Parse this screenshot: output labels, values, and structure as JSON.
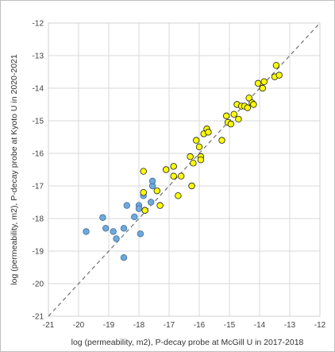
{
  "chart_data": {
    "type": "scatter",
    "title": "",
    "xlabel": "log (permeability, m2), P-decay probe at McGill U in 2017-2018",
    "ylabel": "log (permeability, m2), P-decay probe at Kyoto U in 2020-2021",
    "xlim": [
      -21,
      -12
    ],
    "ylim": [
      -21,
      -12
    ],
    "x_ticks": [
      "-21",
      "-20",
      "-19",
      "-18",
      "-17",
      "-16",
      "-15",
      "-14",
      "-13",
      "-12"
    ],
    "y_ticks": [
      "-21",
      "-20",
      "-19",
      "-18",
      "-17",
      "-16",
      "-15",
      "-14",
      "-13",
      "-12"
    ],
    "grid": true,
    "reference_line": "1:1 dashed diagonal",
    "series": [
      {
        "color": "#6fa8dc",
        "edge_color": "#3f6f9a",
        "points": [
          [
            -19.75,
            -18.4
          ],
          [
            -19.2,
            -17.97
          ],
          [
            -19.1,
            -18.3
          ],
          [
            -18.85,
            -18.4
          ],
          [
            -18.75,
            -18.62
          ],
          [
            -18.5,
            -18.3
          ],
          [
            -18.5,
            -19.2
          ],
          [
            -18.4,
            -17.6
          ],
          [
            -18.15,
            -17.95
          ],
          [
            -18.0,
            -17.6
          ],
          [
            -18.0,
            -17.7
          ],
          [
            -17.95,
            -18.47
          ],
          [
            -17.85,
            -17.3
          ],
          [
            -17.8,
            -17.75
          ],
          [
            -17.6,
            -17.5
          ],
          [
            -17.55,
            -17.0
          ],
          [
            -17.55,
            -16.85
          ]
        ]
      },
      {
        "color": "#ffff00",
        "edge_color": "#1a1a1a",
        "points": [
          [
            -17.85,
            -16.55
          ],
          [
            -17.85,
            -17.2
          ],
          [
            -17.8,
            -17.75
          ],
          [
            -17.4,
            -17.15
          ],
          [
            -17.3,
            -17.6
          ],
          [
            -17.1,
            -16.5
          ],
          [
            -16.85,
            -16.7
          ],
          [
            -16.85,
            -16.4
          ],
          [
            -16.7,
            -17.3
          ],
          [
            -16.6,
            -16.7
          ],
          [
            -16.3,
            -16.1
          ],
          [
            -16.25,
            -17.0
          ],
          [
            -16.2,
            -16.3
          ],
          [
            -16.1,
            -15.6
          ],
          [
            -16.0,
            -15.8
          ],
          [
            -15.95,
            -16.1
          ],
          [
            -15.95,
            -16.2
          ],
          [
            -15.85,
            -15.4
          ],
          [
            -15.75,
            -15.25
          ],
          [
            -15.7,
            -15.35
          ],
          [
            -15.25,
            -15.6
          ],
          [
            -15.1,
            -14.85
          ],
          [
            -15.05,
            -15.05
          ],
          [
            -14.95,
            -15.1
          ],
          [
            -14.85,
            -14.8
          ],
          [
            -14.75,
            -14.5
          ],
          [
            -14.7,
            -14.95
          ],
          [
            -14.6,
            -14.55
          ],
          [
            -14.5,
            -14.55
          ],
          [
            -14.4,
            -14.6
          ],
          [
            -14.35,
            -14.3
          ],
          [
            -14.25,
            -14.45
          ],
          [
            -14.2,
            -14.5
          ],
          [
            -14.05,
            -13.85
          ],
          [
            -13.9,
            -14.0
          ],
          [
            -13.85,
            -13.8
          ],
          [
            -13.5,
            -13.65
          ],
          [
            -13.45,
            -13.3
          ],
          [
            -13.35,
            -13.6
          ]
        ]
      }
    ]
  }
}
